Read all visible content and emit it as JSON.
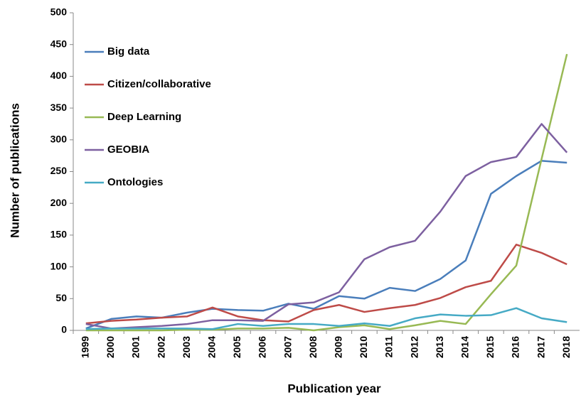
{
  "chart_data": {
    "type": "line",
    "xlabel": "Publication year",
    "ylabel": "Number of publications",
    "categories": [
      "1999",
      "2000",
      "2001",
      "2002",
      "2003",
      "2004",
      "2005",
      "2006",
      "2007",
      "2008",
      "2009",
      "2010",
      "2011",
      "2012",
      "2013",
      "2014",
      "2015",
      "2016",
      "2017",
      "2018"
    ],
    "series": [
      {
        "name": "Big data",
        "color": "#4a7ebb",
        "values": [
          3,
          18,
          22,
          20,
          28,
          34,
          32,
          31,
          42,
          34,
          54,
          50,
          67,
          62,
          81,
          110,
          215,
          243,
          267,
          264
        ]
      },
      {
        "name": "Citizen/collaborative",
        "color": "#be4b48",
        "values": [
          11,
          15,
          17,
          20,
          22,
          36,
          22,
          16,
          14,
          32,
          40,
          29,
          35,
          40,
          51,
          68,
          78,
          135,
          122,
          104
        ]
      },
      {
        "name": "Deep Learning",
        "color": "#98b954",
        "values": [
          0,
          0,
          0,
          0,
          1,
          1,
          3,
          3,
          4,
          0,
          5,
          8,
          2,
          8,
          15,
          10,
          57,
          102,
          270,
          435
        ]
      },
      {
        "name": "GEOBIA",
        "color": "#7d60a0",
        "values": [
          10,
          3,
          5,
          7,
          10,
          16,
          16,
          15,
          41,
          44,
          60,
          112,
          131,
          141,
          187,
          243,
          265,
          273,
          325,
          280
        ]
      },
      {
        "name": "Ontologies",
        "color": "#46aac5",
        "values": [
          2,
          3,
          3,
          3,
          3,
          2,
          10,
          7,
          10,
          10,
          7,
          11,
          7,
          19,
          25,
          23,
          24,
          35,
          19,
          13
        ]
      }
    ],
    "ylim": [
      0,
      500
    ],
    "yticks": [
      0,
      50,
      100,
      150,
      200,
      250,
      300,
      350,
      400,
      450,
      500
    ],
    "legend": "upper left"
  }
}
